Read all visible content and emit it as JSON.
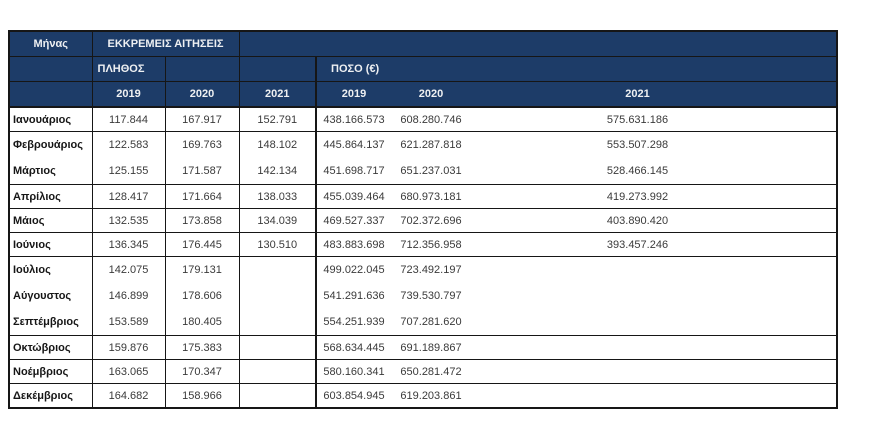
{
  "table": {
    "header": {
      "month_label": "Μήνας",
      "pending_label": "ΕΚΚΡΕΜΕΙΣ ΑΙΤΗΣΕΙΣ",
      "count_label": "ΠΛΗΘΟΣ",
      "amount_label": "ΠΟΣΟ (€)",
      "count_years": [
        "2019",
        "2020",
        "2021"
      ],
      "amount_years": [
        "2019",
        "2020",
        "2021"
      ]
    },
    "rows": [
      {
        "month": "Ιανουάριος",
        "count_2019": "117.844",
        "count_2020": "167.917",
        "count_2021": "152.791",
        "amount_2019": "438.166.573",
        "amount_2020": "608.280.746",
        "amount_2021": "575.631.186",
        "divider_below": true,
        "tall": false
      },
      {
        "month": "Φεβρουάριος",
        "count_2019": "122.583",
        "count_2020": "169.763",
        "count_2021": "148.102",
        "amount_2019": "445.864.137",
        "amount_2020": "621.287.818",
        "amount_2021": "553.507.298",
        "divider_below": false,
        "tall": true
      },
      {
        "month": "Μάρτιος",
        "count_2019": "125.155",
        "count_2020": "171.587",
        "count_2021": "142.134",
        "amount_2019": "451.698.717",
        "amount_2020": "651.237.031",
        "amount_2021": "528.466.145",
        "divider_below": true,
        "tall": true
      },
      {
        "month": "Απρίλιος",
        "count_2019": "128.417",
        "count_2020": "171.664",
        "count_2021": "138.033",
        "amount_2019": "455.039.464",
        "amount_2020": "680.973.181",
        "amount_2021": "419.273.992",
        "divider_below": true,
        "tall": false
      },
      {
        "month": "Μάιος",
        "count_2019": "132.535",
        "count_2020": "173.858",
        "count_2021": "134.039",
        "amount_2019": "469.527.337",
        "amount_2020": "702.372.696",
        "amount_2021": "403.890.420",
        "divider_below": true,
        "tall": false
      },
      {
        "month": "Ιούνιος",
        "count_2019": "136.345",
        "count_2020": "176.445",
        "count_2021": "130.510",
        "amount_2019": "483.883.698",
        "amount_2020": "712.356.958",
        "amount_2021": "393.457.246",
        "divider_below": true,
        "tall": false
      },
      {
        "month": "Ιούλιος",
        "count_2019": "142.075",
        "count_2020": "179.131",
        "count_2021": "",
        "amount_2019": "499.022.045",
        "amount_2020": "723.492.197",
        "amount_2021": "",
        "divider_below": false,
        "tall": true
      },
      {
        "month": "Αύγουστος",
        "count_2019": "146.899",
        "count_2020": "178.606",
        "count_2021": "",
        "amount_2019": "541.291.636",
        "amount_2020": "739.530.797",
        "amount_2021": "",
        "divider_below": false,
        "tall": true
      },
      {
        "month": "Σεπτέμβριος",
        "count_2019": "153.589",
        "count_2020": "180.405",
        "count_2021": "",
        "amount_2019": "554.251.939",
        "amount_2020": "707.281.620",
        "amount_2021": "",
        "divider_below": true,
        "tall": true
      },
      {
        "month": "Οκτώβριος",
        "count_2019": "159.876",
        "count_2020": "175.383",
        "count_2021": "",
        "amount_2019": "568.634.445",
        "amount_2020": "691.189.867",
        "amount_2021": "",
        "divider_below": true,
        "tall": false
      },
      {
        "month": "Νοέμβριος",
        "count_2019": "163.065",
        "count_2020": "170.347",
        "count_2021": "",
        "amount_2019": "580.160.341",
        "amount_2020": "650.281.472",
        "amount_2021": "",
        "divider_below": true,
        "tall": false
      },
      {
        "month": "Δεκέμβριος",
        "count_2019": "164.682",
        "count_2020": "158.966",
        "count_2021": "",
        "amount_2019": "603.854.945",
        "amount_2020": "619.203.861",
        "amount_2021": "",
        "divider_below": true,
        "tall": false
      }
    ]
  },
  "colors": {
    "header_bg": "#1d3c68",
    "header_text": "#eef0f2",
    "border": "#161616",
    "month_text": "#161616",
    "value_text": "#3a3a3a",
    "page_bg": "#ffffff"
  }
}
